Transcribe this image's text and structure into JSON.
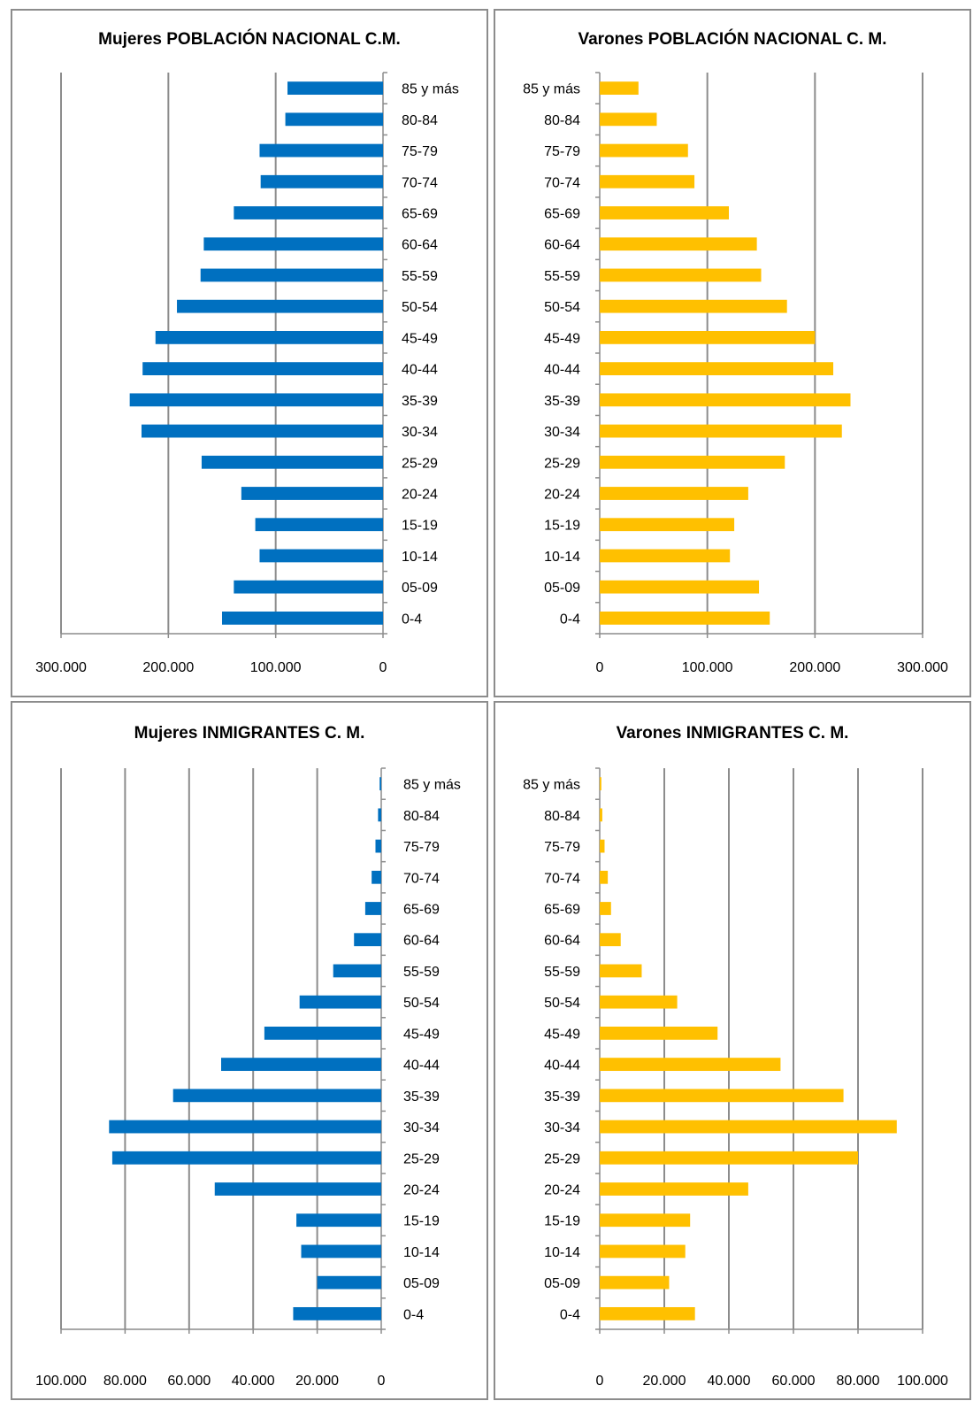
{
  "chart_data": [
    {
      "type": "bar",
      "orientation": "horizontal",
      "direction": "left",
      "title": "Mujeres POBLACIÓN NACIONAL C.M.",
      "categories": [
        "0-4",
        "05-09",
        "10-14",
        "15-19",
        "20-24",
        "25-29",
        "30-34",
        "35-39",
        "40-44",
        "45-49",
        "50-54",
        "55-59",
        "60-64",
        "65-69",
        "70-74",
        "75-79",
        "80-84",
        "85 y más"
      ],
      "values": [
        150000,
        139000,
        115000,
        119000,
        132000,
        169000,
        225000,
        236000,
        224000,
        212000,
        192000,
        170000,
        167000,
        139000,
        114000,
        115000,
        91000,
        89000
      ],
      "xlim": [
        0,
        300000
      ],
      "ticks": [
        0,
        100000,
        200000,
        300000
      ],
      "tick_labels": [
        "0",
        "100.000",
        "200.000",
        "300.000"
      ],
      "color": "#0070C0",
      "grid": true
    },
    {
      "type": "bar",
      "orientation": "horizontal",
      "direction": "right",
      "title": "Varones POBLACIÓN NACIONAL C. M.",
      "categories": [
        "0-4",
        "05-09",
        "10-14",
        "15-19",
        "20-24",
        "25-29",
        "30-34",
        "35-39",
        "40-44",
        "45-49",
        "50-54",
        "55-59",
        "60-64",
        "65-69",
        "70-74",
        "75-79",
        "80-84",
        "85 y más"
      ],
      "values": [
        158000,
        148000,
        121000,
        125000,
        138000,
        172000,
        225000,
        233000,
        217000,
        200000,
        174000,
        150000,
        146000,
        120000,
        88000,
        82000,
        53000,
        36000
      ],
      "xlim": [
        0,
        300000
      ],
      "ticks": [
        0,
        100000,
        200000,
        300000
      ],
      "tick_labels": [
        "0",
        "100.000",
        "200.000",
        "300.000"
      ],
      "color": "#FFC000",
      "grid": true
    },
    {
      "type": "bar",
      "orientation": "horizontal",
      "direction": "left",
      "title": "Mujeres INMIGRANTES C. M.",
      "categories": [
        "0-4",
        "05-09",
        "10-14",
        "15-19",
        "20-24",
        "25-29",
        "30-34",
        "35-39",
        "40-44",
        "45-49",
        "50-54",
        "55-59",
        "60-64",
        "65-69",
        "70-74",
        "75-79",
        "80-84",
        "85 y más"
      ],
      "values": [
        27500,
        20000,
        25000,
        26500,
        52000,
        84000,
        85000,
        65000,
        50000,
        36500,
        25500,
        15000,
        8500,
        5000,
        3000,
        1800,
        1000,
        500
      ],
      "xlim": [
        0,
        100000
      ],
      "ticks": [
        0,
        20000,
        40000,
        60000,
        80000,
        100000
      ],
      "tick_labels": [
        "0",
        "20.000",
        "40.000",
        "60.000",
        "80.000",
        "100.000"
      ],
      "color": "#0070C0",
      "grid": true
    },
    {
      "type": "bar",
      "orientation": "horizontal",
      "direction": "right",
      "title": "Varones INMIGRANTES C. M.",
      "categories": [
        "0-4",
        "05-09",
        "10-14",
        "15-19",
        "20-24",
        "25-29",
        "30-34",
        "35-39",
        "40-44",
        "45-49",
        "50-54",
        "55-59",
        "60-64",
        "65-69",
        "70-74",
        "75-79",
        "80-84",
        "85 y más"
      ],
      "values": [
        29500,
        21500,
        26500,
        28000,
        46000,
        80000,
        92000,
        75500,
        56000,
        36500,
        24000,
        13000,
        6500,
        3500,
        2500,
        1500,
        800,
        500
      ],
      "xlim": [
        0,
        100000
      ],
      "ticks": [
        0,
        20000,
        40000,
        60000,
        80000,
        100000
      ],
      "tick_labels": [
        "0",
        "20.000",
        "40.000",
        "60.000",
        "80.000",
        "100.000"
      ],
      "color": "#FFC000",
      "grid": true
    }
  ]
}
